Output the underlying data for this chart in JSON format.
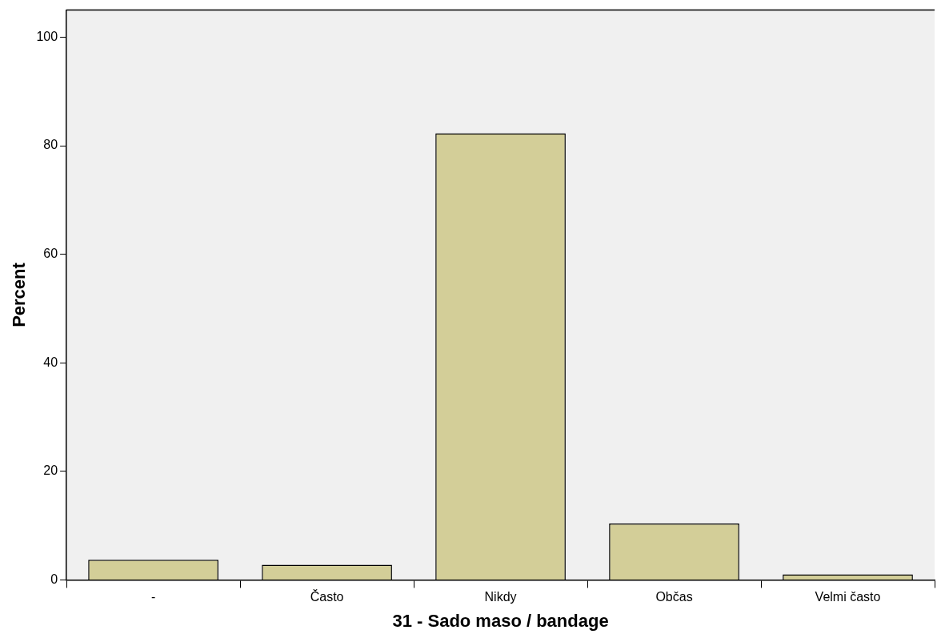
{
  "chart_data": {
    "type": "bar",
    "xlabel": "31 - Sado maso / bandage",
    "ylabel": "Percent",
    "categories": [
      "-",
      "Často",
      "Nikdy",
      "Občas",
      "Velmi často"
    ],
    "values": [
      3.7,
      2.8,
      82.3,
      10.4,
      1.0
    ],
    "color": "#d3ce98",
    "ylim": [
      0,
      105
    ],
    "yticks": [
      0,
      20,
      40,
      60,
      80,
      100
    ],
    "grid": false,
    "legend": false
  }
}
